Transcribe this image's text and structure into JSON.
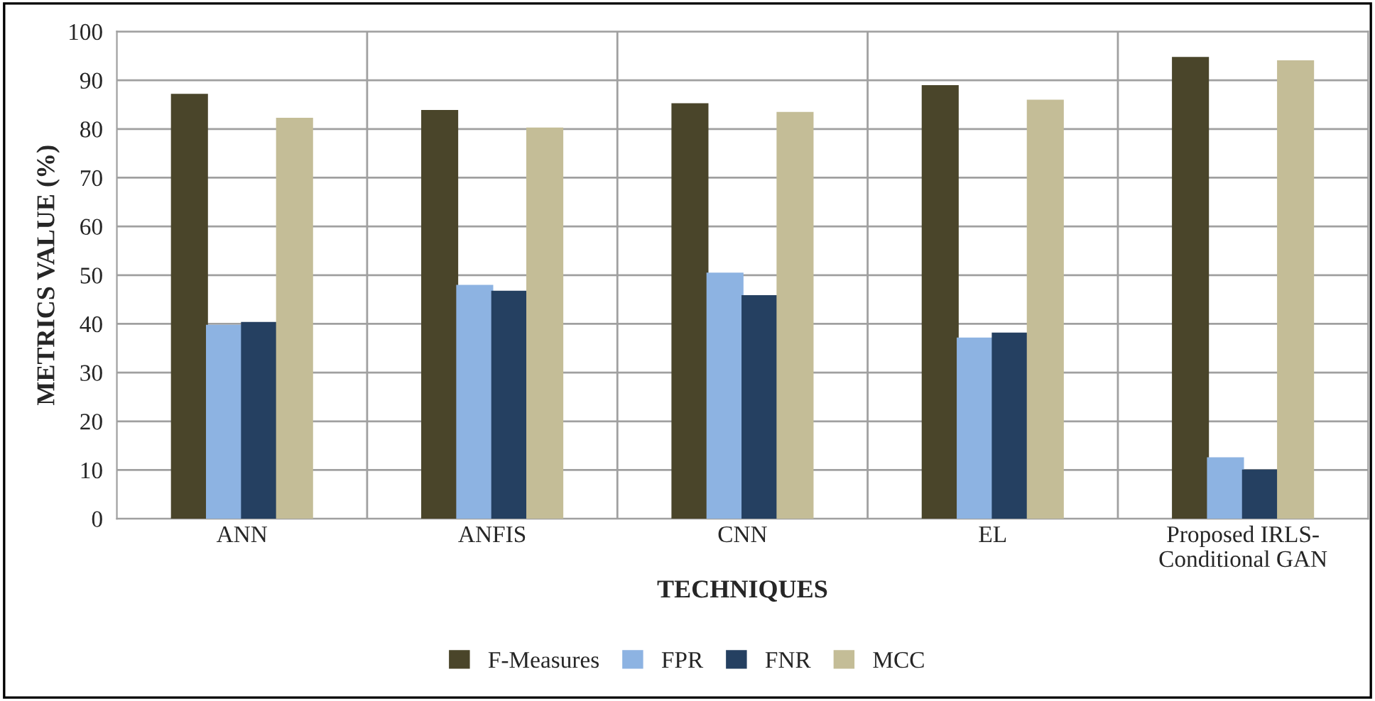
{
  "chart_data": {
    "type": "bar",
    "xlabel": "TECHNIQUES",
    "ylabel": "METRICS VALUE (%)",
    "categories": [
      "ANN",
      "ANFIS",
      "CNN",
      "EL",
      "Proposed IRLS-\nConditional GAN"
    ],
    "series": [
      {
        "name": "F-Measures",
        "color": "#4a452a",
        "values": [
          87,
          83.7,
          85.1,
          88.8,
          94.6
        ]
      },
      {
        "name": "FPR",
        "color": "#8db3e2",
        "values": [
          39.6,
          47.8,
          50.3,
          37,
          12.4
        ]
      },
      {
        "name": "FNR",
        "color": "#254061",
        "values": [
          40.2,
          46.6,
          45.7,
          38,
          9.9
        ]
      },
      {
        "name": "MCC",
        "color": "#c4bd97",
        "values": [
          82.1,
          80.1,
          83.3,
          85.8,
          93.9
        ]
      }
    ],
    "ylim": [
      0,
      100
    ],
    "yticks": [
      0,
      10,
      20,
      30,
      40,
      50,
      60,
      70,
      80,
      90,
      100
    ],
    "grid": true,
    "legend": "bottom"
  }
}
